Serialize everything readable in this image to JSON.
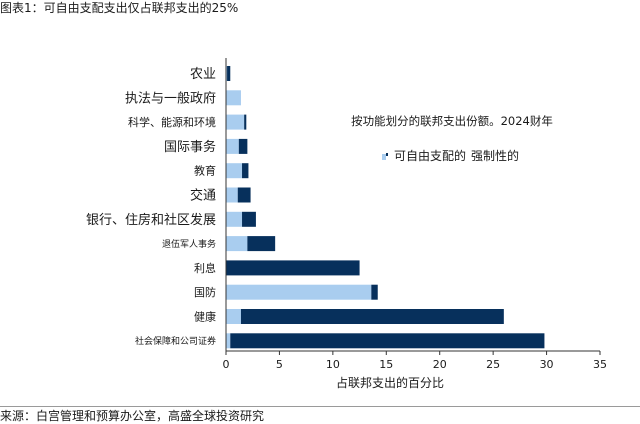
{
  "figure": {
    "title": "图表1：可自由支配支出仅占联邦支出的25%",
    "source": "来源：白宫管理和预算办公室，高盛全球投资研究"
  },
  "chart_data": {
    "type": "bar",
    "orientation": "horizontal",
    "stacked": true,
    "title": "按功能划分的联邦支出份额。2024财年",
    "xlabel": "占联邦支出的百分比",
    "ylabel": "",
    "xlim": [
      0,
      35
    ],
    "xticks": [
      0,
      5,
      10,
      15,
      20,
      25,
      30,
      35
    ],
    "grid": false,
    "legend_position": "center-right",
    "categories": [
      "农业",
      "执法与一般政府",
      "科学、能源和环境",
      "国际事务",
      "教育",
      "交通",
      "银行、住房和社区发展",
      "退伍军人事务",
      "利息",
      "国防",
      "健康",
      "社会保障和公司证券"
    ],
    "series": [
      {
        "name": "可自由支配的",
        "color": "#a9cdef",
        "values": [
          0.1,
          1.4,
          1.7,
          1.2,
          1.5,
          1.1,
          1.5,
          2.0,
          0.0,
          13.6,
          1.4,
          0.4
        ]
      },
      {
        "name": "强制性的",
        "color": "#07305c",
        "values": [
          0.3,
          0.0,
          0.2,
          0.8,
          0.6,
          1.2,
          1.3,
          2.6,
          12.5,
          0.6,
          24.6,
          29.4
        ]
      }
    ]
  }
}
